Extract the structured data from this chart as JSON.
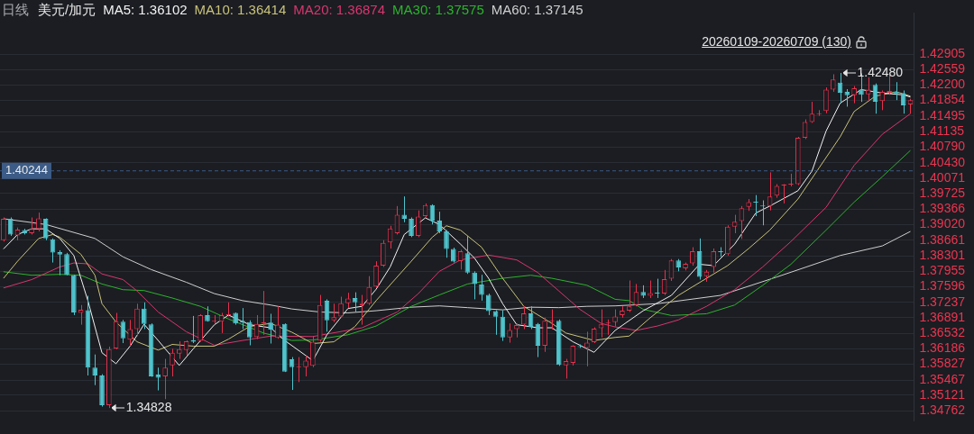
{
  "chart_data": {
    "type": "candlestick",
    "title": "日线",
    "subtitle": "美元/加元",
    "legend": "top",
    "grid": "y",
    "tick_labels": "y",
    "categories": [
      null,
      null,
      null,
      null,
      null,
      null,
      null,
      null,
      null,
      null,
      null,
      null,
      null,
      null,
      null,
      null,
      null,
      null,
      null,
      null,
      null,
      null,
      null,
      null,
      null,
      null,
      null,
      null,
      null,
      null,
      null,
      null,
      null,
      null,
      null,
      null,
      null,
      null,
      null,
      null,
      null,
      null,
      null,
      null,
      null,
      null,
      null,
      null,
      null,
      null,
      null,
      null,
      null,
      null,
      null,
      null,
      null,
      null,
      null,
      null,
      null,
      null,
      null,
      null,
      null,
      null,
      null,
      null,
      null,
      null,
      null,
      null,
      null,
      null,
      null,
      null,
      null,
      null,
      null,
      null,
      null,
      null,
      null,
      null,
      null,
      null,
      null,
      null,
      null,
      null,
      null,
      null,
      null,
      null,
      null,
      null,
      null,
      null,
      null,
      null,
      null,
      null,
      null,
      null,
      null,
      null,
      null,
      null,
      null,
      null,
      null,
      null,
      null,
      null,
      null,
      null,
      null,
      null,
      null,
      null,
      null,
      null,
      null,
      null,
      null,
      null,
      null,
      null,
      null,
      null
    ],
    "ohlc": [
      [
        1.3866,
        1.3918,
        1.3863,
        1.3915
      ],
      [
        1.3915,
        1.3918,
        1.3876,
        1.3879
      ],
      [
        1.3877,
        1.3895,
        1.3866,
        1.389
      ],
      [
        1.3889,
        1.3892,
        1.3879,
        1.3882
      ],
      [
        1.3882,
        1.3918,
        1.3879,
        1.3892
      ],
      [
        1.3892,
        1.3929,
        1.3886,
        1.3916
      ],
      [
        1.3915,
        1.3916,
        1.3866,
        1.387
      ],
      [
        1.3868,
        1.387,
        1.3815,
        1.3838
      ],
      [
        1.3839,
        1.3843,
        1.3786,
        1.3833
      ],
      [
        1.3834,
        1.3837,
        1.3786,
        1.3787
      ],
      [
        1.3786,
        1.3787,
        1.3695,
        1.3701
      ],
      [
        1.37,
        1.3718,
        1.3673,
        1.3707
      ],
      [
        1.3706,
        1.3739,
        1.3557,
        1.3575
      ],
      [
        1.3575,
        1.3605,
        1.3535,
        1.3557
      ],
      [
        1.3557,
        1.356,
        1.3486,
        1.3489
      ],
      [
        1.3489,
        1.3623,
        1.34828,
        1.3617
      ],
      [
        1.3619,
        1.37,
        1.3617,
        1.3681
      ],
      [
        1.368,
        1.3684,
        1.3631,
        1.3642
      ],
      [
        1.3639,
        1.3684,
        1.3625,
        1.3663
      ],
      [
        1.3663,
        1.3721,
        1.3647,
        1.371
      ],
      [
        1.371,
        1.3724,
        1.3663,
        1.3675
      ],
      [
        1.3674,
        1.3676,
        1.3554,
        1.3555
      ],
      [
        1.3559,
        1.3575,
        1.3523,
        1.3552
      ],
      [
        1.3555,
        1.3595,
        1.3503,
        1.3575
      ],
      [
        1.358,
        1.3618,
        1.3555,
        1.3609
      ],
      [
        1.3607,
        1.3635,
        1.3595,
        1.3617
      ],
      [
        1.3615,
        1.3637,
        1.3602,
        1.3635
      ],
      [
        1.3638,
        1.3693,
        1.3631,
        1.3634
      ],
      [
        1.3636,
        1.3697,
        1.3634,
        1.3695
      ],
      [
        1.3695,
        1.3715,
        1.368,
        1.3681
      ],
      [
        1.368,
        1.3695,
        1.3676,
        1.3682
      ],
      [
        1.368,
        1.37,
        1.3654,
        1.3695
      ],
      [
        1.3695,
        1.3724,
        1.3692,
        1.3697
      ],
      [
        1.37,
        1.3701,
        1.3673,
        1.3676
      ],
      [
        1.3682,
        1.3711,
        1.3663,
        1.3678
      ],
      [
        1.3679,
        1.3683,
        1.3626,
        1.3644
      ],
      [
        1.3645,
        1.3695,
        1.364,
        1.3675
      ],
      [
        1.3676,
        1.375,
        1.365,
        1.3679
      ],
      [
        1.3678,
        1.3698,
        1.363,
        1.3662
      ],
      [
        1.3643,
        1.3715,
        1.3641,
        1.3673
      ],
      [
        1.3675,
        1.3676,
        1.3565,
        1.3566
      ],
      [
        1.3594,
        1.3599,
        1.3524,
        1.3576
      ],
      [
        1.3576,
        1.3599,
        1.3542,
        1.3578
      ],
      [
        1.3576,
        1.3602,
        1.3555,
        1.3591
      ],
      [
        1.3579,
        1.3647,
        1.3576,
        1.3634
      ],
      [
        1.3637,
        1.3741,
        1.3634,
        1.3718
      ],
      [
        1.3728,
        1.3731,
        1.3657,
        1.3683
      ],
      [
        1.3683,
        1.3721,
        1.3679,
        1.369
      ],
      [
        1.3692,
        1.3737,
        1.3689,
        1.3722
      ],
      [
        1.3722,
        1.3746,
        1.3711,
        1.3733
      ],
      [
        1.3734,
        1.3747,
        1.3702,
        1.3724
      ],
      [
        1.3717,
        1.3741,
        1.3673,
        1.3721
      ],
      [
        1.3721,
        1.3784,
        1.3718,
        1.3759
      ],
      [
        1.376,
        1.3818,
        1.3757,
        1.3808
      ],
      [
        1.3808,
        1.3866,
        1.3805,
        1.386
      ],
      [
        1.3861,
        1.3899,
        1.3847,
        1.3893
      ],
      [
        1.3882,
        1.3944,
        1.3879,
        1.3924
      ],
      [
        1.3924,
        1.3966,
        1.3907,
        1.3915
      ],
      [
        1.3915,
        1.3918,
        1.3873,
        1.3876
      ],
      [
        1.3876,
        1.3934,
        1.3873,
        1.392
      ],
      [
        1.3921,
        1.395,
        1.3918,
        1.3946
      ],
      [
        1.3946,
        1.3948,
        1.3902,
        1.3911
      ],
      [
        1.3911,
        1.3931,
        1.3882,
        1.3886
      ],
      [
        1.3886,
        1.3889,
        1.3826,
        1.3846
      ],
      [
        1.3846,
        1.3849,
        1.3815,
        1.3817
      ],
      [
        1.3818,
        1.3844,
        1.3799,
        1.3841
      ],
      [
        1.3836,
        1.3876,
        1.3789,
        1.3792
      ],
      [
        1.3792,
        1.3795,
        1.3731,
        1.3766
      ],
      [
        1.3765,
        1.3787,
        1.3728,
        1.3741
      ],
      [
        1.3741,
        1.3744,
        1.3695,
        1.3704
      ],
      [
        1.3704,
        1.3706,
        1.365,
        1.3691
      ],
      [
        1.3691,
        1.3706,
        1.3636,
        1.3644
      ],
      [
        1.3644,
        1.3676,
        1.3632,
        1.3661
      ],
      [
        1.3663,
        1.3676,
        1.3644,
        1.3672
      ],
      [
        1.3673,
        1.3715,
        1.3663,
        1.3699
      ],
      [
        1.3699,
        1.3715,
        1.3663,
        1.3668
      ],
      [
        1.3675,
        1.3677,
        1.3599,
        1.3625
      ],
      [
        1.3625,
        1.3689,
        1.3611,
        1.3682
      ],
      [
        1.3681,
        1.3708,
        1.3662,
        1.3683
      ],
      [
        1.3682,
        1.3685,
        1.3579,
        1.3581
      ],
      [
        1.358,
        1.3595,
        1.355,
        1.359
      ],
      [
        1.3586,
        1.3626,
        1.358,
        1.3625
      ],
      [
        1.3624,
        1.3628,
        1.362,
        1.3622
      ],
      [
        1.362,
        1.3657,
        1.3578,
        1.3632
      ],
      [
        1.3633,
        1.3667,
        1.3631,
        1.3664
      ],
      [
        1.3665,
        1.3708,
        1.3644,
        1.3674
      ],
      [
        1.3676,
        1.3685,
        1.365,
        1.3677
      ],
      [
        1.3679,
        1.3708,
        1.3669,
        1.3692
      ],
      [
        1.3695,
        1.3715,
        1.3689,
        1.3705
      ],
      [
        1.3705,
        1.3774,
        1.3702,
        1.3715
      ],
      [
        1.3718,
        1.3766,
        1.3715,
        1.3748
      ],
      [
        1.3748,
        1.3763,
        1.3734,
        1.3739
      ],
      [
        1.3739,
        1.3774,
        1.3734,
        1.3745
      ],
      [
        1.3745,
        1.3778,
        1.3734,
        1.3744
      ],
      [
        1.3744,
        1.3798,
        1.3741,
        1.3777
      ],
      [
        1.3778,
        1.3823,
        1.3773,
        1.382
      ],
      [
        1.382,
        1.3823,
        1.3795,
        1.3804
      ],
      [
        1.3802,
        1.3815,
        1.3797,
        1.3812
      ],
      [
        1.3813,
        1.385,
        1.3808,
        1.3841
      ],
      [
        1.3841,
        1.387,
        1.3776,
        1.3782
      ],
      [
        1.3784,
        1.3798,
        1.3771,
        1.3794
      ],
      [
        1.3805,
        1.3847,
        1.3792,
        1.3841
      ],
      [
        1.3841,
        1.385,
        1.3828,
        1.3839
      ],
      [
        1.3834,
        1.39,
        1.3831,
        1.3897
      ],
      [
        1.3897,
        1.3924,
        1.3882,
        1.3908
      ],
      [
        1.391,
        1.3944,
        1.3869,
        1.3939
      ],
      [
        1.3942,
        1.396,
        1.3933,
        1.3953
      ],
      [
        1.3953,
        1.3969,
        1.3921,
        1.3952
      ],
      [
        1.3944,
        1.3957,
        1.39,
        1.3943
      ],
      [
        1.3944,
        1.4021,
        1.3934,
        1.3966
      ],
      [
        1.3968,
        1.3994,
        1.3963,
        1.399
      ],
      [
        1.3991,
        1.3994,
        1.395,
        1.3992
      ],
      [
        1.3993,
        1.4018,
        1.3989,
        1.3994
      ],
      [
        1.3994,
        1.4102,
        1.3992,
        1.41
      ],
      [
        1.41,
        1.4142,
        1.4097,
        1.4136
      ],
      [
        1.4136,
        1.4182,
        1.4134,
        1.4155
      ],
      [
        1.4154,
        1.4163,
        1.415,
        1.4155
      ],
      [
        1.4161,
        1.4215,
        1.4156,
        1.421
      ],
      [
        1.421,
        1.4245,
        1.4205,
        1.4233
      ],
      [
        1.4226,
        1.4248,
        1.4179,
        1.4203
      ],
      [
        1.4205,
        1.4211,
        1.4171,
        1.4197
      ],
      [
        1.4197,
        1.4218,
        1.4179,
        1.4213
      ],
      [
        1.421,
        1.4247,
        1.4182,
        1.4198
      ],
      [
        1.4199,
        1.4238,
        1.4185,
        1.421
      ],
      [
        1.4221,
        1.4224,
        1.4155,
        1.4182
      ],
      [
        1.4184,
        1.4208,
        1.4163,
        1.4205
      ],
      [
        1.4203,
        1.4244,
        1.4198,
        1.4207
      ],
      [
        1.4205,
        1.4227,
        1.4186,
        1.4201
      ],
      [
        1.4202,
        1.4208,
        1.4155,
        1.4174
      ],
      [
        1.4176,
        1.4189,
        1.4155,
        1.4186
      ]
    ],
    "colors": [
      "#e8304c",
      "#4fc3cc",
      "#e8304c",
      "#4fc3cc",
      "#e8304c",
      "#e8304c",
      "#4fc3cc",
      "#4fc3cc",
      "#4fc3cc",
      "#4fc3cc",
      "#4fc3cc",
      "#e8304c",
      "#4fc3cc",
      "#4fc3cc",
      "#4fc3cc",
      "#e8304c",
      "#e8304c",
      "#4fc3cc",
      "#e8304c",
      "#e8304c",
      "#4fc3cc",
      "#4fc3cc",
      "#4fc3cc",
      "#e8304c",
      "#e8304c",
      "#e8304c",
      "#e8304c",
      "#4fc3cc",
      "#e8304c",
      "#4fc3cc",
      "#e8304c",
      "#e8304c",
      "#e8304c",
      "#4fc3cc",
      "#4fc3cc",
      "#4fc3cc",
      "#e8304c",
      "#e8304c",
      "#4fc3cc",
      "#e8304c",
      "#4fc3cc",
      "#4fc3cc",
      "#e8304c",
      "#e8304c",
      "#e8304c",
      "#e8304c",
      "#4fc3cc",
      "#e8304c",
      "#e8304c",
      "#e8304c",
      "#4fc3cc",
      "#e8304c",
      "#e8304c",
      "#e8304c",
      "#e8304c",
      "#e8304c",
      "#e8304c",
      "#4fc3cc",
      "#4fc3cc",
      "#e8304c",
      "#e8304c",
      "#4fc3cc",
      "#4fc3cc",
      "#4fc3cc",
      "#4fc3cc",
      "#e8304c",
      "#4fc3cc",
      "#4fc3cc",
      "#4fc3cc",
      "#4fc3cc",
      "#4fc3cc",
      "#4fc3cc",
      "#e8304c",
      "#e8304c",
      "#e8304c",
      "#4fc3cc",
      "#4fc3cc",
      "#e8304c",
      "#e8304c",
      "#4fc3cc",
      "#e8304c",
      "#e8304c",
      "#4fc3cc",
      "#e8304c",
      "#e8304c",
      "#e8304c",
      "#e8304c",
      "#e8304c",
      "#e8304c",
      "#e8304c",
      "#e8304c",
      "#4fc3cc",
      "#e8304c",
      "#4fc3cc",
      "#e8304c",
      "#e8304c",
      "#4fc3cc",
      "#e8304c",
      "#e8304c",
      "#4fc3cc",
      "#e8304c",
      "#e8304c",
      "#4fc3cc",
      "#e8304c",
      "#e8304c",
      "#e8304c",
      "#e8304c",
      "#4fc3cc",
      "#4fc3cc",
      "#e8304c",
      "#e8304c",
      "#e8304c",
      "#e8304c",
      "#e8304c",
      "#e8304c",
      "#e8304c",
      "#e8304c",
      "#e8304c",
      "#e8304c",
      "#4fc3cc",
      "#4fc3cc",
      "#e8304c",
      "#4fc3cc",
      "#e8304c",
      "#4fc3cc",
      "#e8304c",
      "#e8304c",
      "#4fc3cc",
      "#4fc3cc",
      "#e8304c"
    ],
    "series": [
      {
        "name": "MA5: 1.36102",
        "type": "line",
        "color": "#f2f2f2",
        "values": [
          1.3846,
          null,
          1.3879,
          null,
          1.3892,
          null,
          1.3892,
          null,
          1.387,
          null,
          1.3831,
          null,
          1.3728,
          null,
          1.3609,
          null,
          1.3584,
          null,
          1.3624,
          null,
          1.3674,
          null,
          1.3637,
          null,
          null,
          1.358,
          null,
          1.3618,
          null,
          null,
          1.3673,
          null,
          1.3695,
          null,
          null,
          1.3673,
          null,
          null,
          1.3666,
          null,
          1.3637,
          null,
          null,
          null,
          1.3591,
          null,
          1.365,
          null,
          null,
          1.371,
          null,
          1.3715,
          null,
          1.3754,
          null,
          1.3805,
          null,
          1.3879,
          null,
          null,
          1.3917,
          null,
          1.3902,
          null,
          null,
          1.3857,
          null,
          1.3825,
          null,
          1.3779,
          null,
          1.3721,
          null,
          1.3673,
          null,
          null,
          1.3666,
          null,
          1.3666,
          null,
          null,
          1.3634,
          null,
          null,
          1.361,
          null,
          null,
          1.366,
          null,
          null,
          null,
          1.3705,
          null,
          null,
          null,
          1.374,
          null,
          null,
          null,
          1.3811,
          null,
          1.3808,
          null,
          null,
          1.3857,
          null,
          null,
          1.3928,
          null,
          1.3944,
          null,
          null,
          null,
          1.3979,
          null,
          1.4024,
          null,
          1.4115,
          null,
          1.4179,
          null,
          null,
          1.421,
          null,
          null,
          1.4202,
          null,
          null,
          1.4198,
          1.4193
        ]
      },
      {
        "name": "MA10: 1.36414",
        "type": "line",
        "color": "#c9c27a",
        "values": [
          1.3779,
          null,
          1.3818,
          null,
          null,
          1.387,
          null,
          1.3879,
          1.3873,
          null,
          null,
          1.3834,
          null,
          1.3786,
          1.3721,
          null,
          1.3679,
          null,
          null,
          1.3634,
          null,
          null,
          1.3615,
          null,
          1.3628,
          null,
          null,
          1.3624,
          null,
          null,
          1.3624,
          null,
          1.364,
          null,
          null,
          1.3669,
          null,
          null,
          1.3676,
          null,
          null,
          1.3656,
          null,
          null,
          1.363,
          null,
          null,
          1.3634,
          null,
          null,
          1.3669,
          null,
          null,
          1.3728,
          null,
          null,
          null,
          null,
          1.3818,
          null,
          null,
          1.3873,
          null,
          1.3899,
          null,
          1.3889,
          null,
          null,
          1.385,
          null,
          null,
          1.3779,
          null,
          null,
          1.3715,
          null,
          null,
          null,
          1.3676,
          null,
          1.3654,
          null,
          null,
          null,
          1.3637,
          null,
          null,
          1.3644,
          null,
          1.3647,
          null,
          null,
          1.3689,
          null,
          null,
          null,
          1.374,
          null,
          null,
          null,
          1.3779,
          null,
          null,
          1.3808,
          null,
          null,
          1.3847,
          null,
          null,
          1.3889,
          null,
          null,
          null,
          1.396,
          null,
          null,
          1.4031,
          null,
          null,
          1.4102,
          null,
          1.416,
          null,
          null,
          1.4195,
          null,
          null,
          1.4205,
          null,
          1.4195
        ]
      },
      {
        "name": "MA20: 1.36874",
        "type": "line",
        "color": "#d9366e",
        "values": [
          1.3757,
          null,
          null,
          null,
          1.3776,
          null,
          null,
          null,
          1.3805,
          null,
          1.3814,
          null,
          1.3812,
          null,
          1.3789,
          null,
          null,
          1.3776,
          null,
          1.375,
          null,
          null,
          1.3702,
          null,
          null,
          null,
          1.3657,
          null,
          null,
          null,
          1.3626,
          null,
          null,
          null,
          1.3637,
          null,
          null,
          null,
          1.3647,
          null,
          null,
          null,
          null,
          null,
          1.3646,
          null,
          null,
          null,
          null,
          null,
          null,
          1.3666,
          null,
          null,
          null,
          null,
          1.3702,
          null,
          null,
          1.3744,
          null,
          null,
          1.3795,
          null,
          null,
          1.3821,
          null,
          null,
          null,
          1.3832,
          null,
          null,
          null,
          1.3821,
          null,
          null,
          1.3792,
          null,
          null,
          1.375,
          null,
          null,
          1.3708,
          null,
          null,
          1.3676,
          null,
          1.3668,
          null,
          null,
          1.366,
          null,
          null,
          1.367,
          null,
          null,
          1.3684,
          null,
          null,
          null,
          1.3715,
          null,
          null,
          null,
          1.3753,
          null,
          null,
          null,
          1.3805,
          null,
          null,
          null,
          1.3863,
          null,
          null,
          null,
          null,
          1.3941,
          null,
          null,
          null,
          1.4037,
          null,
          null,
          null,
          1.4108,
          null,
          null,
          null,
          1.4155
        ]
      },
      {
        "name": "MA30: 1.37575",
        "type": "line",
        "color": "#2eb22e",
        "values": [
          1.3794,
          null,
          null,
          null,
          1.3786,
          null,
          null,
          null,
          1.3788,
          null,
          null,
          1.3786,
          null,
          null,
          1.3766,
          null,
          null,
          1.3753,
          null,
          null,
          1.3751,
          null,
          null,
          null,
          1.3734,
          null,
          null,
          null,
          1.3715,
          null,
          null,
          null,
          1.3686,
          null,
          null,
          null,
          null,
          1.3654,
          null,
          null,
          null,
          1.3637,
          null,
          null,
          1.3638,
          null,
          null,
          null,
          null,
          1.365,
          null,
          null,
          null,
          1.367,
          null,
          null,
          null,
          null,
          1.3715,
          null,
          null,
          null,
          1.3741,
          null,
          null,
          null,
          1.3766,
          null,
          null,
          null,
          null,
          1.3779,
          null,
          null,
          null,
          1.3786,
          null,
          null,
          1.3779,
          null,
          null,
          null,
          null,
          1.3763,
          null,
          null,
          null,
          1.3731,
          null,
          1.3728,
          null,
          1.3708,
          null,
          null,
          null,
          1.3694,
          null,
          null,
          null,
          null,
          1.3698,
          null,
          null,
          null,
          1.3718,
          null,
          null,
          null,
          1.3763,
          null,
          null,
          null,
          1.3811,
          null,
          null,
          null,
          null,
          1.3889,
          null,
          null,
          null,
          1.3953,
          null,
          null,
          null,
          1.4011,
          null,
          null,
          null,
          1.4071
        ]
      },
      {
        "name": "MA60: 1.37145",
        "type": "line",
        "color": "#cfcfcf",
        "values": [
          1.3915,
          null,
          null,
          null,
          null,
          null,
          1.3902,
          null,
          null,
          null,
          null,
          null,
          null,
          1.387,
          null,
          null,
          null,
          1.3828,
          null,
          null,
          null,
          1.3799,
          null,
          null,
          null,
          null,
          1.377,
          null,
          null,
          null,
          1.3744,
          null,
          null,
          null,
          1.3728,
          null,
          null,
          null,
          1.3718,
          null,
          null,
          1.3709,
          null,
          null,
          null,
          1.3702,
          null,
          null,
          null,
          1.37,
          null,
          null,
          null,
          1.3705,
          null,
          null,
          null,
          null,
          1.3713,
          null,
          null,
          null,
          1.3716,
          null,
          null,
          null,
          1.3712,
          null,
          null,
          null,
          null,
          1.3707,
          null,
          null,
          null,
          1.3713,
          null,
          null,
          null,
          1.3712,
          null,
          null,
          null,
          1.3715,
          null,
          null,
          null,
          1.3716,
          null,
          null,
          null,
          null,
          null,
          1.3721,
          null,
          null,
          null,
          null,
          null,
          null,
          null,
          null,
          1.374,
          null,
          null,
          null,
          null,
          null,
          null,
          null,
          1.3782,
          null,
          null,
          null,
          null,
          null,
          null,
          null,
          null,
          1.3831,
          null,
          null,
          null,
          null,
          null,
          1.3853,
          null,
          null,
          null,
          1.3886
        ]
      }
    ],
    "ylim": [
      1.3453,
      1.4385
    ],
    "yticks": [
      1.42905,
      1.42559,
      {
        "value": 1.422,
        "label": "1.42200"
      },
      1.41854,
      1.41495,
      1.41135,
      {
        "value": 1.4079,
        "label": "1.40790"
      },
      {
        "value": 1.4043,
        "label": "1.40430"
      },
      1.40071,
      1.39725,
      1.39366,
      {
        "value": 1.3902,
        "label": "1.39020"
      },
      1.38661,
      1.38301,
      1.37955,
      1.37596,
      1.37237,
      1.36891,
      1.36532,
      1.36186,
      1.35827,
      1.35467,
      1.35121,
      1.34762
    ],
    "ref_lines": [
      {
        "axis": "y",
        "value": 1.40244,
        "label": "1.40244",
        "color": "#3c5b86",
        "line_style": "dashed"
      }
    ],
    "annotations": [
      "20260109-20260709 (130)",
      "1.34828",
      "1.42480"
    ]
  }
}
